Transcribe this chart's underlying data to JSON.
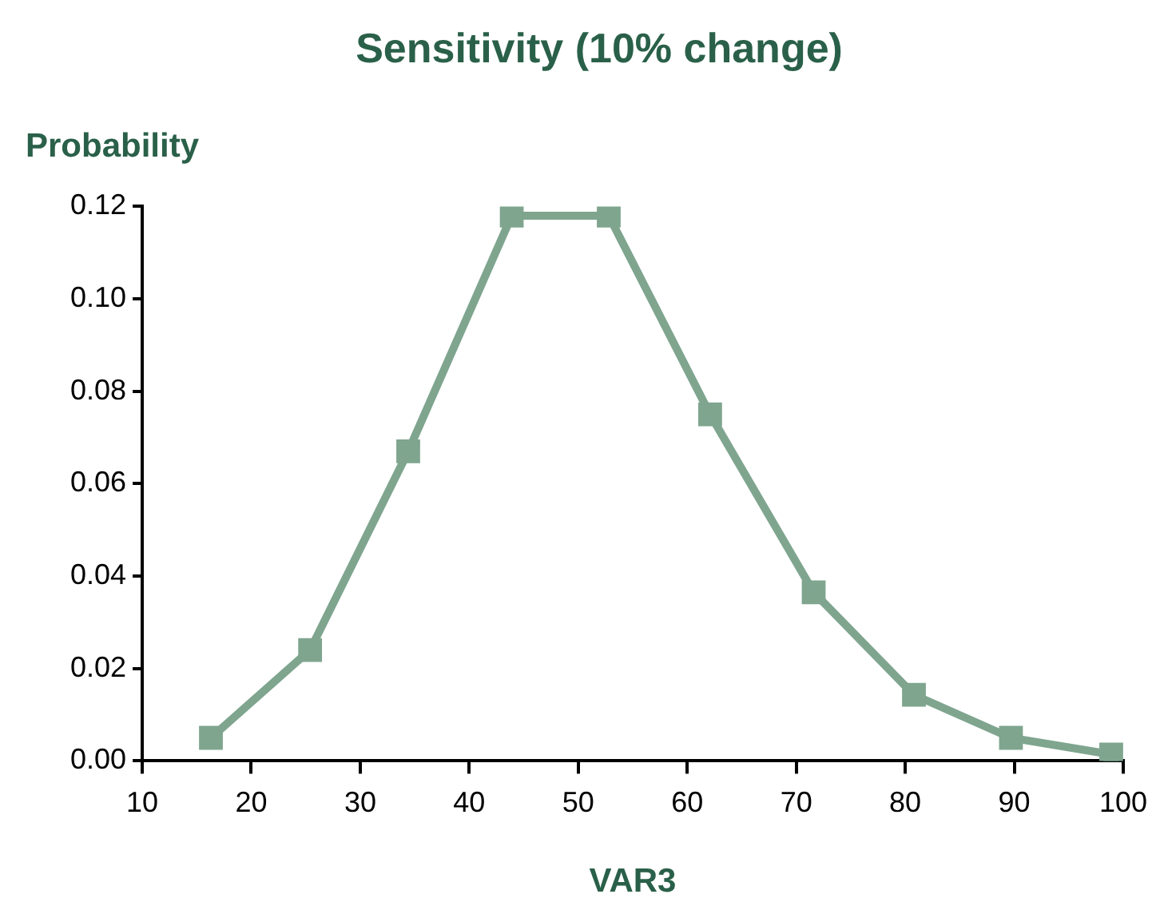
{
  "chart_data": {
    "type": "line",
    "title": "Sensitivity (10% change)",
    "xlabel": "VAR3",
    "ylabel": "Probability",
    "x": [
      16.3,
      25.4,
      34.4,
      43.9,
      52.8,
      62.1,
      71.6,
      80.8,
      89.7,
      98.9
    ],
    "series": [
      {
        "color": "#7fa58f",
        "values": [
          0.005,
          0.024,
          0.067,
          0.118,
          0.118,
          0.075,
          0.0365,
          0.0143,
          0.005,
          0.0014
        ]
      }
    ],
    "xlim": [
      10,
      100
    ],
    "xticks": [
      10,
      20,
      30,
      40,
      50,
      60,
      70,
      80,
      90,
      100
    ],
    "ylim": [
      0,
      0.12
    ],
    "yticks": [
      {
        "value": 0,
        "label": "0.00"
      },
      {
        "value": 0.02,
        "label": "0.02"
      },
      {
        "value": 0.04,
        "label": "0.04"
      },
      {
        "value": 0.06,
        "label": "0.06"
      },
      {
        "value": 0.08,
        "label": "0.08"
      },
      {
        "value": 0.1,
        "label": "0.10"
      },
      {
        "value": 0.12,
        "label": "0.12"
      }
    ],
    "grid": false,
    "legend": false,
    "marker": "square",
    "line_style": "solid"
  }
}
